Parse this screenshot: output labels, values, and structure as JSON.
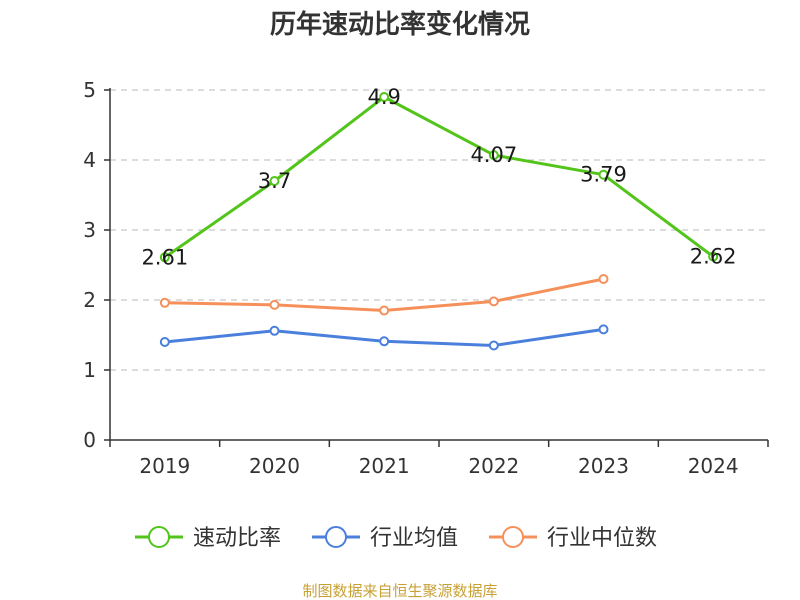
{
  "chart_data": {
    "type": "line",
    "title": "历年速动比率变化情况",
    "categories": [
      "2019",
      "2020",
      "2021",
      "2022",
      "2023",
      "2024"
    ],
    "ylim": [
      0,
      5
    ],
    "yticks": [
      "0",
      "1",
      "2",
      "3",
      "4",
      "5"
    ],
    "grid": true,
    "legend_position": "bottom",
    "series": [
      {
        "name": "速动比率",
        "color": "#52c41a",
        "values": [
          2.61,
          3.7,
          4.9,
          4.07,
          3.79,
          2.62
        ],
        "labels": [
          "2.61",
          "3.7",
          "4.9",
          "4.07",
          "3.79",
          "2.62"
        ]
      },
      {
        "name": "行业均值",
        "color": "#4a7fdb",
        "values": [
          1.4,
          1.56,
          1.41,
          1.35,
          1.58,
          null
        ]
      },
      {
        "name": "行业中位数",
        "color": "#f5905a",
        "values": [
          1.96,
          1.93,
          1.85,
          1.98,
          2.3,
          null
        ]
      }
    ]
  },
  "source": {
    "text": "制图数据来自恒生聚源数据库",
    "color": "#c8a136"
  }
}
